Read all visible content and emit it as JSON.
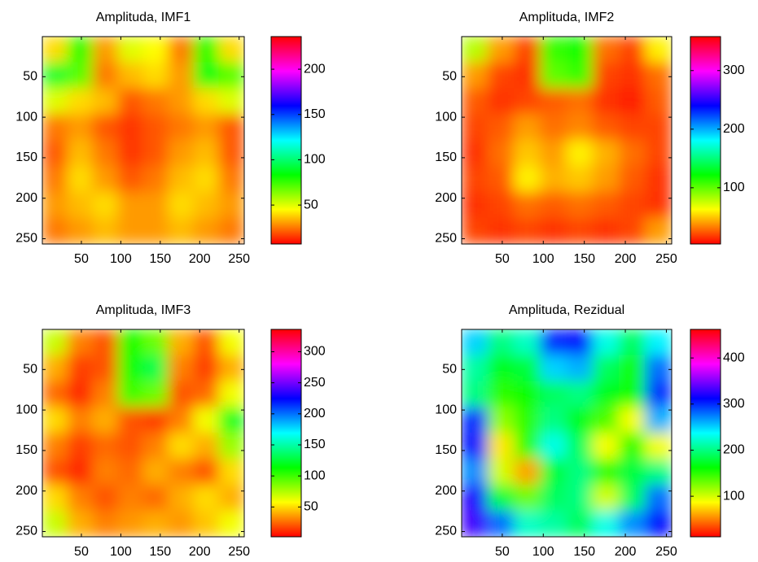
{
  "chart_data": [
    {
      "type": "heatmap",
      "title": "Amplituda, IMF1",
      "colormap": "hsv",
      "y_reversed": true,
      "xlim": [
        0.5,
        256.5
      ],
      "ylim": [
        0.5,
        256.5
      ],
      "xticks": [
        50,
        100,
        150,
        200,
        250
      ],
      "yticks": [
        50,
        100,
        150,
        200,
        250
      ],
      "clim": [
        7,
        236
      ],
      "cticks": [
        50,
        100,
        150,
        200
      ],
      "z": [
        [
          40,
          80,
          30,
          50,
          45,
          25,
          80,
          40
        ],
        [
          90,
          70,
          25,
          35,
          40,
          30,
          85,
          70
        ],
        [
          50,
          40,
          35,
          20,
          25,
          30,
          40,
          50
        ],
        [
          25,
          30,
          20,
          15,
          20,
          25,
          30,
          20
        ],
        [
          20,
          35,
          25,
          15,
          20,
          30,
          35,
          20
        ],
        [
          25,
          40,
          30,
          20,
          25,
          35,
          40,
          25
        ],
        [
          30,
          35,
          40,
          30,
          30,
          40,
          35,
          30
        ],
        [
          25,
          30,
          35,
          30,
          30,
          35,
          30,
          25
        ]
      ]
    },
    {
      "type": "heatmap",
      "title": "Amplituda, IMF2",
      "colormap": "hsv",
      "y_reversed": true,
      "xlim": [
        0.5,
        256.5
      ],
      "ylim": [
        0.5,
        256.5
      ],
      "xticks": [
        50,
        100,
        150,
        200,
        250
      ],
      "yticks": [
        50,
        100,
        150,
        200,
        250
      ],
      "clim": [
        4,
        358
      ],
      "cticks": [
        100,
        200,
        300
      ],
      "z": [
        [
          80,
          40,
          20,
          110,
          120,
          30,
          20,
          60
        ],
        [
          40,
          20,
          15,
          100,
          110,
          20,
          15,
          30
        ],
        [
          25,
          15,
          20,
          25,
          30,
          15,
          10,
          25
        ],
        [
          20,
          25,
          40,
          30,
          35,
          25,
          20,
          20
        ],
        [
          15,
          30,
          50,
          40,
          60,
          45,
          30,
          20
        ],
        [
          20,
          25,
          60,
          45,
          50,
          40,
          25,
          15
        ],
        [
          15,
          20,
          30,
          25,
          30,
          25,
          20,
          15
        ],
        [
          20,
          15,
          20,
          15,
          20,
          15,
          20,
          40
        ]
      ]
    },
    {
      "type": "heatmap",
      "title": "Amplituda, IMF3",
      "colormap": "hsv",
      "y_reversed": true,
      "xlim": [
        0.5,
        256.5
      ],
      "ylim": [
        0.5,
        256.5
      ],
      "xticks": [
        50,
        100,
        150,
        200,
        250
      ],
      "yticks": [
        50,
        100,
        150,
        200,
        250
      ],
      "clim": [
        2,
        336
      ],
      "cticks": [
        50,
        100,
        150,
        200,
        250,
        300
      ],
      "z": [
        [
          70,
          30,
          20,
          110,
          90,
          40,
          20,
          60
        ],
        [
          40,
          15,
          20,
          110,
          130,
          30,
          15,
          40
        ],
        [
          25,
          10,
          30,
          100,
          90,
          20,
          25,
          60
        ],
        [
          50,
          30,
          40,
          20,
          15,
          30,
          60,
          120
        ],
        [
          30,
          15,
          25,
          20,
          30,
          50,
          40,
          80
        ],
        [
          20,
          10,
          30,
          25,
          40,
          30,
          20,
          50
        ],
        [
          50,
          30,
          20,
          30,
          25,
          40,
          50,
          40
        ],
        [
          70,
          40,
          30,
          35,
          40,
          35,
          45,
          60
        ]
      ]
    },
    {
      "type": "heatmap",
      "title": "Amplituda, Rezidual",
      "colormap": "hsv",
      "y_reversed": true,
      "xlim": [
        0.5,
        256.5
      ],
      "ylim": [
        0.5,
        256.5
      ],
      "xticks": [
        50,
        100,
        150,
        200,
        250
      ],
      "yticks": [
        50,
        100,
        150,
        200,
        250
      ],
      "clim": [
        12,
        462
      ],
      "cticks": [
        100,
        200,
        300,
        400
      ],
      "z": [
        [
          250,
          200,
          220,
          300,
          310,
          230,
          190,
          240
        ],
        [
          210,
          170,
          180,
          250,
          260,
          190,
          160,
          280
        ],
        [
          200,
          150,
          160,
          190,
          200,
          170,
          160,
          300
        ],
        [
          300,
          120,
          150,
          200,
          170,
          140,
          90,
          260
        ],
        [
          310,
          80,
          150,
          230,
          190,
          90,
          150,
          90
        ],
        [
          270,
          100,
          60,
          180,
          200,
          150,
          180,
          200
        ],
        [
          320,
          180,
          130,
          190,
          200,
          100,
          190,
          280
        ],
        [
          330,
          280,
          220,
          210,
          190,
          230,
          270,
          310
        ]
      ]
    }
  ]
}
